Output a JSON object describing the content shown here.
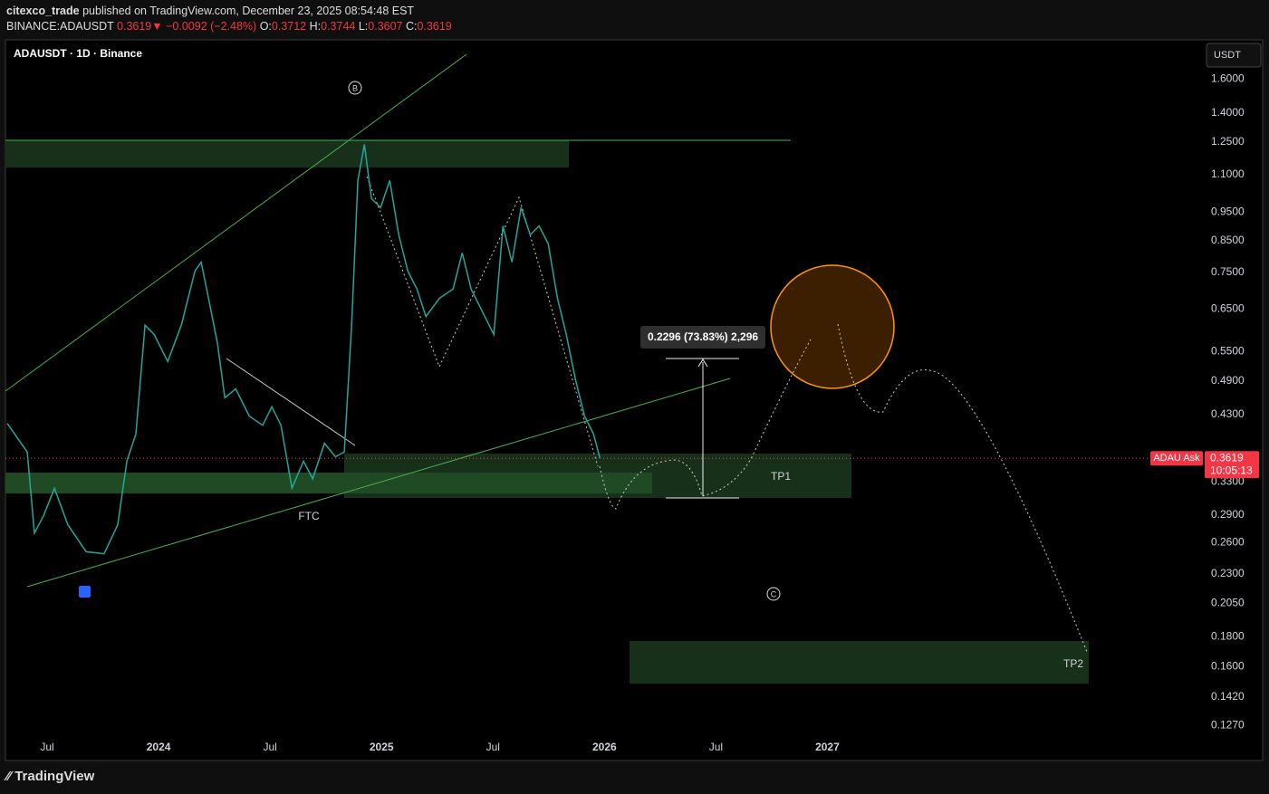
{
  "header": {
    "author": "citexco_trade",
    "published": "published on TradingView.com, December 23, 2025 08:54:48 EST",
    "symbol": "BINANCE:ADAUSDT",
    "last": "0.3619",
    "arrow": "▼",
    "change": "−0.0092 (−2.48%)",
    "o_label": "O:",
    "open": "0.3712",
    "h_label": "H:",
    "high": "0.3744",
    "l_label": "L:",
    "low": "0.3607",
    "c_label": "C:",
    "close": "0.3619"
  },
  "chart_data": {
    "type": "line",
    "title": "ADAUSDT · 1D · Binance",
    "currency": "USDT",
    "color": "#26a69a",
    "log_scale": true,
    "grid": false,
    "x": [
      2023.321,
      2023.411,
      2023.443,
      2023.484,
      2023.533,
      2023.593,
      2023.675,
      2023.756,
      2023.817,
      2023.858,
      2023.898,
      2023.939,
      2023.98,
      2024.041,
      2024.102,
      2024.163,
      2024.191,
      2024.232,
      2024.264,
      2024.297,
      2024.346,
      2024.407,
      2024.467,
      2024.508,
      2024.549,
      2024.598,
      2024.65,
      2024.691,
      2024.744,
      2024.793,
      2024.833,
      2024.866,
      2024.894,
      2024.923,
      2024.955,
      2024.996,
      2025.037,
      2025.077,
      2025.118,
      2025.159,
      2025.199,
      2025.26,
      2025.321,
      2025.362,
      2025.402,
      2025.463,
      2025.504,
      2025.545,
      2025.585,
      2025.626,
      2025.667,
      2025.707,
      2025.748,
      2025.789,
      2025.829,
      2025.87,
      2025.911,
      2025.951,
      2025.98
    ],
    "values": [
      0.415,
      0.371,
      0.27,
      0.289,
      0.322,
      0.279,
      0.251,
      0.249,
      0.279,
      0.358,
      0.398,
      0.61,
      0.588,
      0.529,
      0.61,
      0.754,
      0.781,
      0.654,
      0.568,
      0.459,
      0.475,
      0.427,
      0.412,
      0.443,
      0.412,
      0.322,
      0.358,
      0.334,
      0.384,
      0.364,
      0.371,
      0.61,
      1.076,
      1.239,
      1.002,
      0.967,
      1.076,
      0.869,
      0.754,
      0.703,
      0.631,
      0.678,
      0.703,
      0.81,
      0.703,
      0.631,
      0.588,
      0.9,
      0.781,
      0.967,
      0.869,
      0.9,
      0.839,
      0.678,
      0.588,
      0.493,
      0.427,
      0.398,
      0.3619
    ],
    "xlim": [
      2023.313,
      2028.66
    ],
    "xticks": [
      {
        "value": 2023.5,
        "label": "Jul"
      },
      2024,
      {
        "value": 2024.5,
        "label": "Jul"
      },
      2025,
      {
        "value": 2025.5,
        "label": "Jul"
      },
      2026,
      {
        "value": 2026.5,
        "label": "Jul"
      },
      2027
    ],
    "ylim": [
      0.121,
      1.86
    ],
    "yticks": [
      {
        "value": 1.6,
        "label": "1.6000"
      },
      {
        "value": 1.4,
        "label": "1.4000"
      },
      {
        "value": 1.25,
        "label": "1.2500"
      },
      {
        "value": 1.1,
        "label": "1.1000"
      },
      {
        "value": 0.95,
        "label": "0.9500"
      },
      {
        "value": 0.85,
        "label": "0.8500"
      },
      {
        "value": 0.75,
        "label": "0.7500"
      },
      {
        "value": 0.65,
        "label": "0.6500"
      },
      {
        "value": 0.55,
        "label": "0.5500"
      },
      {
        "value": 0.49,
        "label": "0.4900"
      },
      {
        "value": 0.43,
        "label": "0.4300"
      },
      {
        "value": 0.33,
        "label": "0.3300"
      },
      {
        "value": 0.29,
        "label": "0.2900"
      },
      {
        "value": 0.26,
        "label": "0.2600"
      },
      {
        "value": 0.23,
        "label": "0.2300"
      },
      {
        "value": 0.205,
        "label": "0.2050"
      },
      {
        "value": 0.18,
        "label": "0.1800"
      },
      {
        "value": 0.16,
        "label": "0.1600"
      },
      {
        "value": 0.142,
        "label": "0.1420"
      },
      {
        "value": 0.127,
        "label": "0.1270"
      }
    ],
    "annotations": {
      "wave_b": "B",
      "wave_c": "C",
      "ftc": "FTC",
      "tp1": "TP1",
      "tp2": "TP2",
      "measure": "0.2296 (73.83%) 2,296",
      "ask": "ADAU Ask",
      "countdown": "10:05:13"
    }
  },
  "footer": {
    "brand": "TradingView"
  }
}
